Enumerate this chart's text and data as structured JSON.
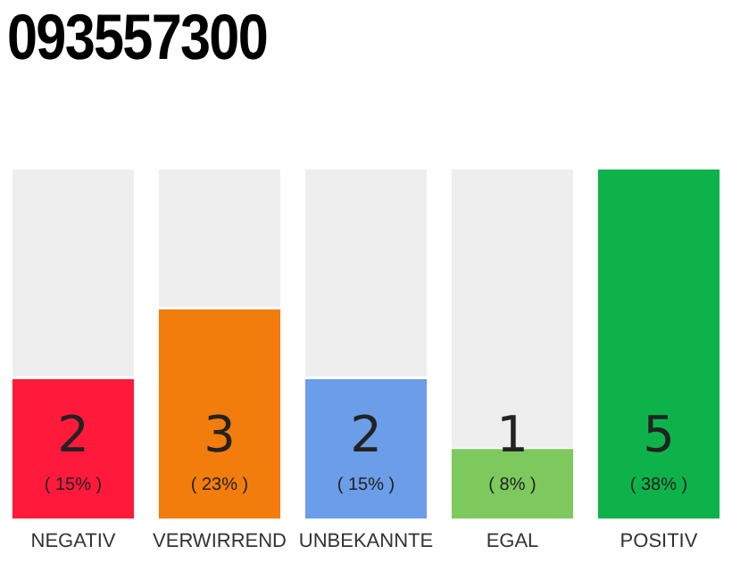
{
  "chart_data": {
    "type": "bar",
    "title": "093557300",
    "categories": [
      "NEGATIV",
      "VERWIRREND",
      "UNBEKANNTE",
      "EGAL",
      "POSITIV"
    ],
    "values": [
      2,
      3,
      2,
      1,
      5
    ],
    "colors": [
      "#ff1a3c",
      "#f27d0c",
      "#6b9de8",
      "#7dc95e",
      "#0db34a"
    ],
    "value_labels": [
      "2\n( 15% )",
      "3\n( 23% )",
      "2\n( 15% )",
      "1\n( 8% )",
      "5\n( 38% )"
    ],
    "grid": false,
    "legend": false,
    "tick_labels": "x"
  }
}
